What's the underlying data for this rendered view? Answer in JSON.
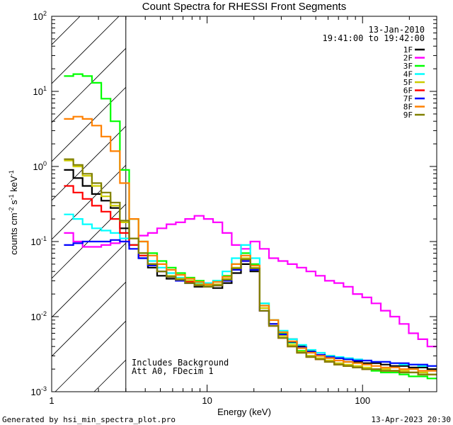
{
  "chart_data": {
    "type": "line",
    "title": "Count Spectra for RHESSI Front Segments",
    "xlabel": "Energy (keV)",
    "ylabel": "counts cm",
    "ylabel_sup1": "-2",
    "ylabel_mid": " s",
    "ylabel_sup2": "-1",
    "ylabel_tail": " keV",
    "ylabel_sup3": "-1",
    "x_scale": "log",
    "y_scale": "log",
    "xlim": [
      1,
      300
    ],
    "ylim": [
      0.001,
      100
    ],
    "x_ticks": [
      {
        "value": 1,
        "label": "1"
      },
      {
        "value": 10,
        "label": "10"
      },
      {
        "value": 100,
        "label": "100"
      }
    ],
    "y_ticks": [
      {
        "value": 0.001,
        "base": "10",
        "exp": "-3"
      },
      {
        "value": 0.01,
        "base": "10",
        "exp": "-2"
      },
      {
        "value": 0.1,
        "base": "10",
        "exp": "-1"
      },
      {
        "value": 1,
        "base": "10",
        "exp": "0"
      },
      {
        "value": 10,
        "base": "10",
        "exp": "1"
      },
      {
        "value": 100,
        "base": "10",
        "exp": "2"
      }
    ],
    "hatch_region": {
      "x_from": 1,
      "x_to": 3
    },
    "legend_date": "13-Jan-2010",
    "legend_time": "19:41:00 to 19:42:00",
    "annotation_line1": "Includes Background",
    "annotation_line2": "Att A0, FDecim 1",
    "footer_left": "Generated by hsi_min_spectra_plot.pro",
    "footer_right": "13-Apr-2023 20:30",
    "series": [
      {
        "name": "1F",
        "color": "#000000",
        "values": [
          0.9,
          0.7,
          0.55,
          0.43,
          0.35,
          0.28,
          0.15,
          0.09,
          0.06,
          0.045,
          0.035,
          0.032,
          0.03,
          0.028,
          0.025,
          0.025,
          0.024,
          0.028,
          0.038,
          0.05,
          0.04,
          0.012,
          0.008,
          0.006,
          0.005,
          0.004,
          0.0035,
          0.003,
          0.003,
          0.0028,
          0.0025,
          0.0025,
          0.0024,
          0.0024,
          0.0023,
          0.0022,
          0.0022,
          0.0021,
          0.0021,
          0.002
        ]
      },
      {
        "name": "2F",
        "color": "#ff00ff",
        "values": [
          0.13,
          0.1,
          0.085,
          0.085,
          0.09,
          0.095,
          0.1,
          0.11,
          0.12,
          0.13,
          0.15,
          0.17,
          0.18,
          0.2,
          0.22,
          0.2,
          0.18,
          0.13,
          0.09,
          0.08,
          0.1,
          0.08,
          0.06,
          0.055,
          0.05,
          0.045,
          0.04,
          0.035,
          0.03,
          0.028,
          0.025,
          0.02,
          0.018,
          0.015,
          0.012,
          0.01,
          0.008,
          0.006,
          0.005,
          0.004
        ]
      },
      {
        "name": "3F",
        "color": "#00ff00",
        "values": [
          16,
          17,
          16,
          13,
          8,
          4,
          0.9,
          0.2,
          0.1,
          0.07,
          0.055,
          0.045,
          0.038,
          0.033,
          0.03,
          0.028,
          0.03,
          0.035,
          0.05,
          0.07,
          0.05,
          0.015,
          0.009,
          0.006,
          0.0045,
          0.0035,
          0.003,
          0.0028,
          0.0025,
          0.0023,
          0.0022,
          0.0021,
          0.002,
          0.0019,
          0.0018,
          0.0018,
          0.0017,
          0.0016,
          0.0016,
          0.0015
        ]
      },
      {
        "name": "4F",
        "color": "#00ffff",
        "values": [
          0.23,
          0.2,
          0.17,
          0.15,
          0.14,
          0.13,
          0.11,
          0.09,
          0.07,
          0.055,
          0.045,
          0.038,
          0.033,
          0.03,
          0.028,
          0.028,
          0.03,
          0.04,
          0.06,
          0.09,
          0.06,
          0.015,
          0.009,
          0.0065,
          0.005,
          0.0042,
          0.0036,
          0.0033,
          0.003,
          0.0029,
          0.0028,
          0.0027,
          0.0026,
          0.0025,
          0.0025,
          0.0024,
          0.0023,
          0.0023,
          0.0022,
          0.0022
        ]
      },
      {
        "name": "5F",
        "color": "#cccc00",
        "values": [
          1.2,
          1.0,
          0.75,
          0.55,
          0.4,
          0.3,
          0.18,
          0.11,
          0.07,
          0.05,
          0.04,
          0.035,
          0.032,
          0.03,
          0.027,
          0.026,
          0.027,
          0.032,
          0.045,
          0.06,
          0.045,
          0.013,
          0.008,
          0.0055,
          0.0042,
          0.0034,
          0.003,
          0.0028,
          0.0026,
          0.0024,
          0.0023,
          0.0022,
          0.0021,
          0.002,
          0.002,
          0.0019,
          0.0019,
          0.0018,
          0.0018,
          0.0017
        ]
      },
      {
        "name": "6F",
        "color": "#ff0000",
        "values": [
          0.55,
          0.45,
          0.37,
          0.3,
          0.25,
          0.2,
          0.13,
          0.09,
          0.065,
          0.05,
          0.04,
          0.034,
          0.031,
          0.029,
          0.026,
          0.025,
          0.026,
          0.03,
          0.042,
          0.055,
          0.042,
          0.012,
          0.0075,
          0.0052,
          0.004,
          0.0033,
          0.0029,
          0.0027,
          0.0025,
          0.0023,
          0.0022,
          0.0021,
          0.002,
          0.002,
          0.0019,
          0.0019,
          0.0018,
          0.0018,
          0.0017,
          0.0017
        ]
      },
      {
        "name": "7F",
        "color": "#0000ff",
        "values": [
          0.09,
          0.095,
          0.1,
          0.1,
          0.1,
          0.105,
          0.1,
          0.08,
          0.06,
          0.048,
          0.04,
          0.034,
          0.03,
          0.028,
          0.026,
          0.025,
          0.026,
          0.03,
          0.042,
          0.055,
          0.042,
          0.012,
          0.008,
          0.0058,
          0.0046,
          0.0039,
          0.0034,
          0.0031,
          0.0029,
          0.0028,
          0.0027,
          0.0026,
          0.0026,
          0.0025,
          0.0025,
          0.0024,
          0.0024,
          0.0023,
          0.0023,
          0.0022
        ]
      },
      {
        "name": "8F",
        "color": "#ff8000",
        "values": [
          4.3,
          4.6,
          4.3,
          3.5,
          2.5,
          1.6,
          0.6,
          0.2,
          0.1,
          0.065,
          0.05,
          0.042,
          0.036,
          0.032,
          0.029,
          0.027,
          0.029,
          0.034,
          0.05,
          0.065,
          0.048,
          0.014,
          0.009,
          0.0062,
          0.0047,
          0.0038,
          0.0033,
          0.003,
          0.0028,
          0.0026,
          0.0025,
          0.0024,
          0.0023,
          0.0022,
          0.0021,
          0.0021,
          0.002,
          0.002,
          0.0019,
          0.0019
        ]
      },
      {
        "name": "9F",
        "color": "#808000",
        "values": [
          1.25,
          1.05,
          0.8,
          0.6,
          0.45,
          0.33,
          0.19,
          0.11,
          0.07,
          0.05,
          0.04,
          0.034,
          0.031,
          0.028,
          0.026,
          0.025,
          0.026,
          0.031,
          0.044,
          0.058,
          0.044,
          0.012,
          0.0075,
          0.0052,
          0.004,
          0.0033,
          0.0029,
          0.0027,
          0.0025,
          0.0023,
          0.0022,
          0.0021,
          0.002,
          0.002,
          0.0019,
          0.0019,
          0.0018,
          0.0018,
          0.0017,
          0.0017
        ]
      }
    ]
  }
}
